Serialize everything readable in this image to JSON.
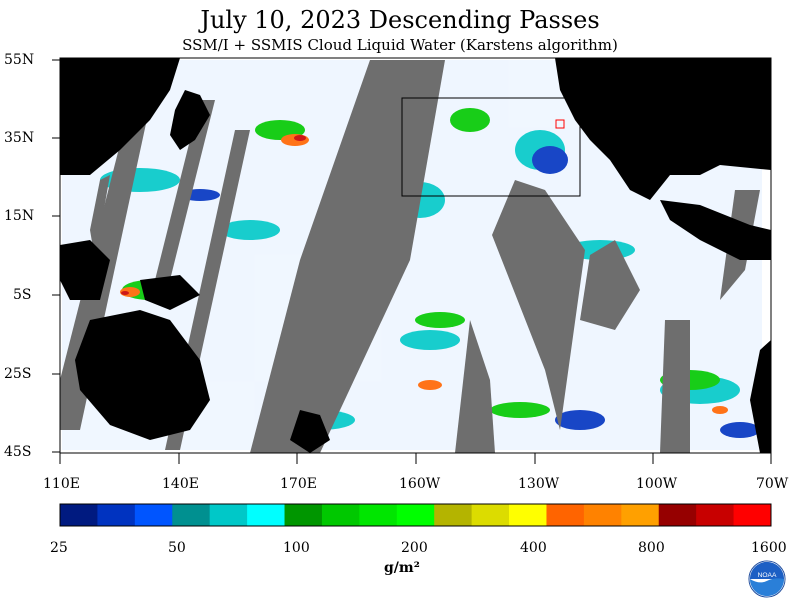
{
  "title": "July 10, 2023  Descending Passes",
  "subtitle": "SSM/I + SSMIS Cloud Liquid Water (Karstens algorithm)",
  "lat_labels": [
    "55N",
    "35N",
    "15N",
    "5S",
    "25S",
    "45S"
  ],
  "lon_labels": [
    "110E",
    "140E",
    "170E",
    "160W",
    "130W",
    "100W",
    "70W"
  ],
  "colorbar": {
    "labels": [
      "25",
      "50",
      "100",
      "200",
      "400",
      "800",
      "1600"
    ],
    "units": "g/m²",
    "colors": [
      "#001a80",
      "#0033c0",
      "#0055ff",
      "#009090",
      "#00c8c8",
      "#00ffff",
      "#009600",
      "#00c800",
      "#00e600",
      "#00ff00",
      "#b4b400",
      "#dcdc00",
      "#ffff00",
      "#ff6400",
      "#ff8200",
      "#ffa000",
      "#960000",
      "#c80000",
      "#ff0000"
    ]
  },
  "colors": {
    "land": "#000000",
    "no_data": "#6e6e6e",
    "ocean_clear": "#ffffff"
  },
  "logo": {
    "icon": "noaa-logo-icon",
    "text": "NOAA"
  }
}
